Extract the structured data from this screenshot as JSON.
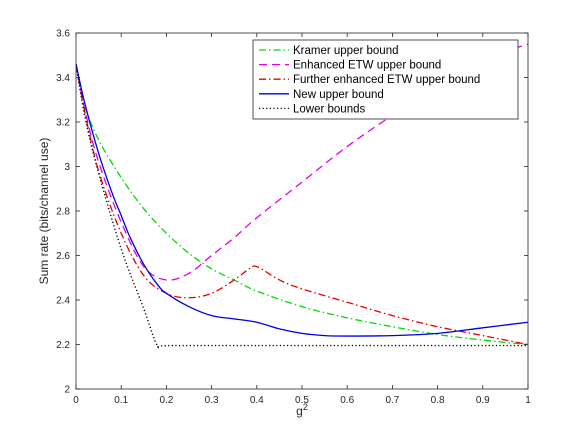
{
  "chart_data": {
    "type": "line",
    "title": "",
    "xlabel": "g",
    "xlabel_superscript": "2",
    "ylabel": "Sum rate (bits/channel use)",
    "xlim": [
      0,
      1
    ],
    "ylim": [
      2,
      3.6
    ],
    "x_ticks": [
      0,
      0.1,
      0.2,
      0.3,
      0.4,
      0.5,
      0.6,
      0.7,
      0.8,
      0.9,
      1
    ],
    "x_tick_labels": [
      "0",
      "0.1",
      "0.2",
      "0.3",
      "0.4",
      "0.5",
      "0.6",
      "0.7",
      "0.8",
      "0.9",
      "1"
    ],
    "y_ticks": [
      2,
      2.2,
      2.4,
      2.6,
      2.8,
      3,
      3.2,
      3.4,
      3.6
    ],
    "y_tick_labels": [
      "2",
      "2.2",
      "2.4",
      "2.6",
      "2.8",
      "3",
      "3.2",
      "3.4",
      "3.6"
    ],
    "grid": false,
    "legend_position": "top-right",
    "series": [
      {
        "name": "Kramer upper bound",
        "color": "#00dd00",
        "dash": "dashdot",
        "x": [
          0,
          0.02,
          0.05,
          0.1,
          0.15,
          0.2,
          0.25,
          0.3,
          0.35,
          0.4,
          0.5,
          0.6,
          0.7,
          0.8,
          0.9,
          1.0
        ],
        "y": [
          3.46,
          3.27,
          3.12,
          2.95,
          2.81,
          2.7,
          2.61,
          2.54,
          2.49,
          2.44,
          2.37,
          2.32,
          2.28,
          2.245,
          2.22,
          2.2
        ]
      },
      {
        "name": "Enhanced ETW upper bound",
        "color": "#e600e6",
        "dash": "dashed",
        "x": [
          0,
          0.02,
          0.05,
          0.1,
          0.15,
          0.2,
          0.25,
          0.3,
          0.35,
          0.4,
          0.5,
          0.6,
          0.7,
          0.8,
          0.9,
          1.0
        ],
        "y": [
          3.46,
          3.25,
          3.02,
          2.75,
          2.55,
          2.49,
          2.52,
          2.6,
          2.68,
          2.77,
          2.93,
          3.09,
          3.23,
          3.36,
          3.48,
          3.55
        ]
      },
      {
        "name": "Further enhanced ETW upper bound",
        "color": "#e60000",
        "dash": "dashdot",
        "x": [
          0,
          0.02,
          0.05,
          0.1,
          0.15,
          0.2,
          0.25,
          0.3,
          0.35,
          0.38,
          0.4,
          0.45,
          0.5,
          0.6,
          0.7,
          0.8,
          0.9,
          1.0
        ],
        "y": [
          3.46,
          3.24,
          2.98,
          2.7,
          2.51,
          2.43,
          2.41,
          2.43,
          2.49,
          2.535,
          2.55,
          2.49,
          2.45,
          2.39,
          2.33,
          2.28,
          2.24,
          2.2
        ]
      },
      {
        "name": "New upper bound",
        "color": "#0000e6",
        "dash": "solid",
        "x": [
          0,
          0.02,
          0.05,
          0.08,
          0.1,
          0.12,
          0.15,
          0.18,
          0.2,
          0.25,
          0.3,
          0.35,
          0.4,
          0.45,
          0.5,
          0.55,
          0.6,
          0.7,
          0.8,
          0.9,
          1.0
        ],
        "y": [
          3.46,
          3.28,
          3.06,
          2.88,
          2.78,
          2.68,
          2.56,
          2.47,
          2.43,
          2.37,
          2.33,
          2.315,
          2.3,
          2.27,
          2.25,
          2.24,
          2.238,
          2.24,
          2.25,
          2.275,
          2.3
        ]
      },
      {
        "name": "Lower bounds",
        "color": "#000000",
        "dash": "dotted",
        "x": [
          0,
          0.02,
          0.05,
          0.1,
          0.15,
          0.18,
          0.2,
          0.4,
          0.6,
          0.8,
          1.0
        ],
        "y": [
          3.46,
          3.22,
          2.97,
          2.63,
          2.36,
          2.195,
          2.195,
          2.195,
          2.195,
          2.195,
          2.195
        ]
      }
    ]
  }
}
